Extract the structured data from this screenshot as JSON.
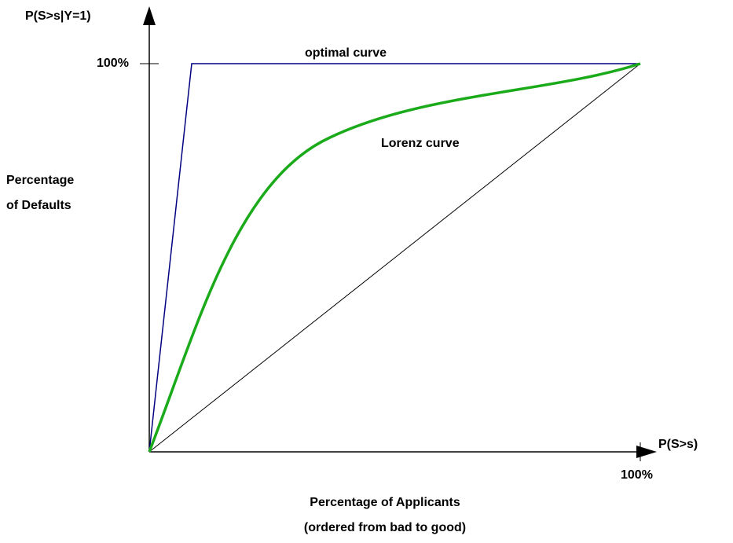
{
  "axes": {
    "y_label": "P(S>s|Y=1)",
    "y_tick": "100%",
    "x_label": "P(S>s)",
    "x_tick": "100%"
  },
  "curves": {
    "optimal": "optimal curve",
    "lorenz": "Lorenz curve"
  },
  "y_title": [
    "Percentage",
    "of Defaults"
  ],
  "x_title": [
    "Percentage of Applicants",
    "(ordered from bad to good)"
  ]
}
